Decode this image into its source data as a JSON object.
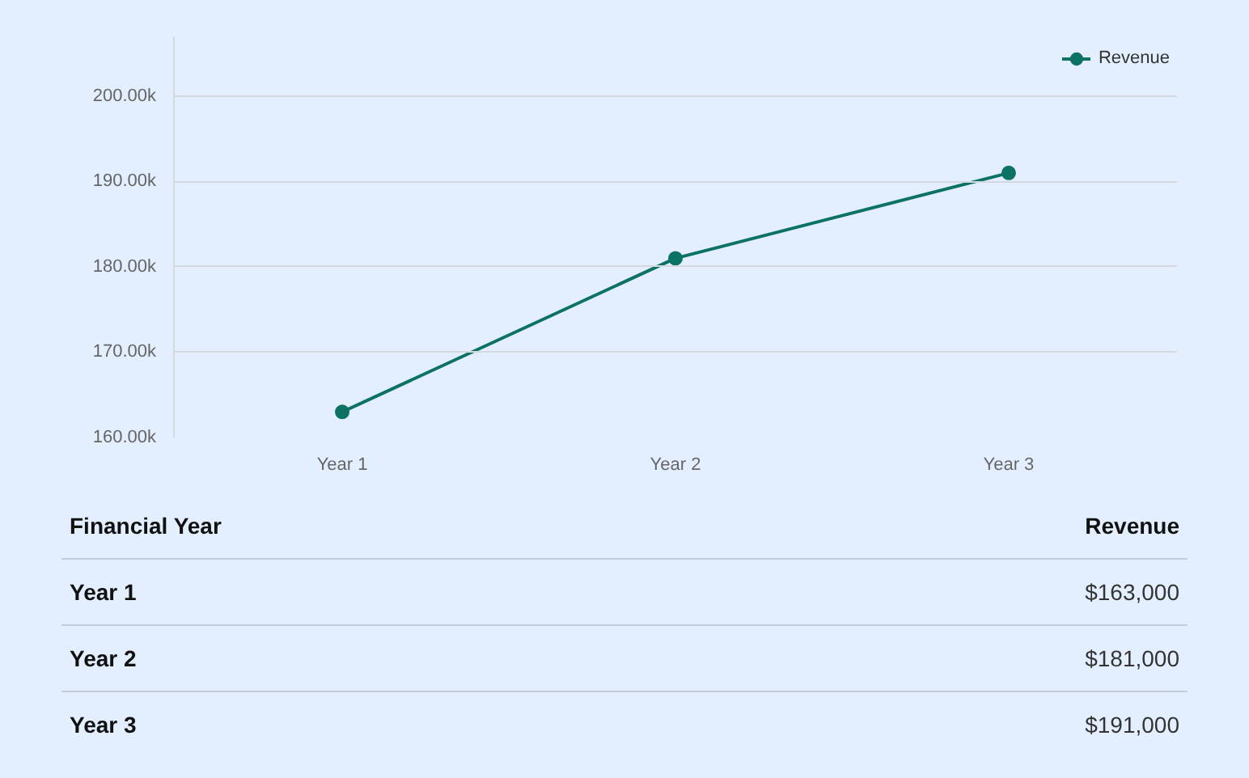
{
  "chart_data": {
    "type": "line",
    "categories": [
      "Year 1",
      "Year 2",
      "Year 3"
    ],
    "series": [
      {
        "name": "Revenue",
        "color": "#0b7265",
        "values": [
          163000,
          181000,
          191000
        ]
      }
    ],
    "ylim": [
      160000,
      207000
    ],
    "yticks": [
      {
        "value": 160000,
        "label": "160.00k"
      },
      {
        "value": 170000,
        "label": "170.00k"
      },
      {
        "value": 180000,
        "label": "180.00k"
      },
      {
        "value": 190000,
        "label": "190.00k"
      },
      {
        "value": 200000,
        "label": "200.00k"
      }
    ],
    "grid": "y",
    "legend": "top right",
    "marker": "circle",
    "line_style": "solid",
    "annotations": [
      "Financial Year",
      "Revenue",
      "$163,000",
      "$181,000",
      "$191,000"
    ]
  }
}
